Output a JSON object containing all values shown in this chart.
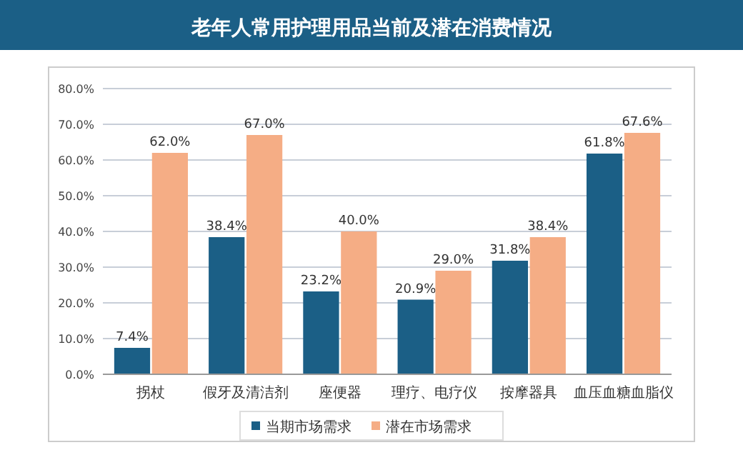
{
  "chart_data": {
    "type": "bar",
    "title": "老年人常用护理用品当前及潜在消费情况",
    "categories": [
      "拐杖",
      "假牙及清洁剂",
      "座便器",
      "理疗、电疗仪",
      "按摩器具",
      "血压血糖血脂仪"
    ],
    "series": [
      {
        "name": "当期市场需求",
        "color": "#1b5f86",
        "values": [
          7.4,
          38.4,
          23.2,
          20.9,
          31.8,
          61.8
        ],
        "value_labels": [
          "7.4%",
          "38.4%",
          "23.2%",
          "20.9%",
          "31.8%",
          "61.8%"
        ]
      },
      {
        "name": "潜在市场需求",
        "color": "#f5ad85",
        "values": [
          62.0,
          67.0,
          40.0,
          29.0,
          38.4,
          67.6
        ],
        "value_labels": [
          "62.0%",
          "67.0%",
          "40.0%",
          "29.0%",
          "38.4%",
          "67.6%"
        ]
      }
    ],
    "ylim": [
      0,
      80
    ],
    "yticks": [
      {
        "value": 0,
        "label": "0.0%"
      },
      {
        "value": 10,
        "label": "10.0%"
      },
      {
        "value": 20,
        "label": "20.0%"
      },
      {
        "value": 30,
        "label": "30.0%"
      },
      {
        "value": 40,
        "label": "40.0%"
      },
      {
        "value": 50,
        "label": "50.0%"
      },
      {
        "value": 60,
        "label": "60.0%"
      },
      {
        "value": 70,
        "label": "70.0%"
      },
      {
        "value": 80,
        "label": "80.0%"
      }
    ],
    "grid": "y",
    "legend": "bottom"
  }
}
